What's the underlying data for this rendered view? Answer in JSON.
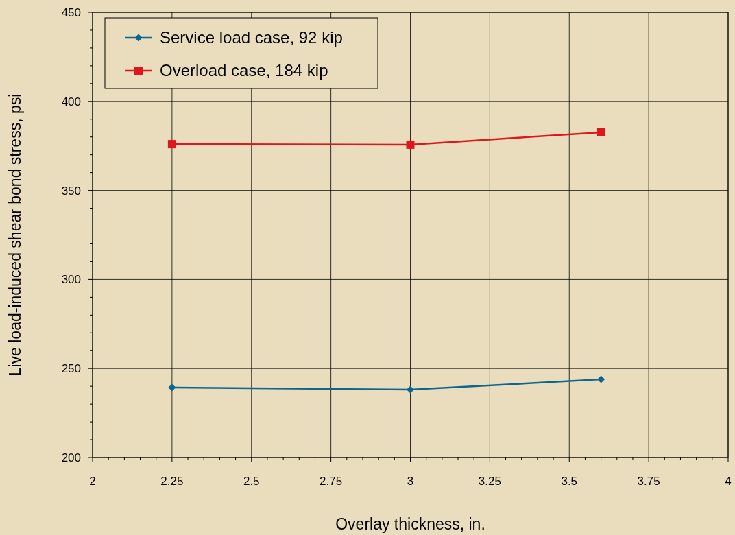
{
  "chart_data": {
    "type": "line",
    "xlabel": "Overlay thickness, in.",
    "ylabel": "Live load-induced shear bond stress, psi",
    "x": [
      2.25,
      3,
      3.6
    ],
    "series": [
      {
        "name": "Service load case, 92 kip",
        "color": "#0e6690",
        "marker": "diamond",
        "values": [
          239.3,
          238.1,
          243.9
        ]
      },
      {
        "name": "Overload case, 184 kip",
        "color": "#e0161e",
        "marker": "square",
        "values": [
          376,
          375.7,
          382.6
        ]
      }
    ],
    "xlim": [
      2,
      4
    ],
    "xticks": [
      2,
      {
        "value": 2.05,
        "label": null
      },
      {
        "value": 2.1,
        "label": null
      },
      {
        "value": 2.15,
        "label": null
      },
      {
        "value": 2.2,
        "label": null
      },
      2.25,
      {
        "value": 2.3,
        "label": null
      },
      {
        "value": 2.35,
        "label": null
      },
      {
        "value": 2.4,
        "label": null
      },
      {
        "value": 2.45,
        "label": null
      },
      2.5,
      {
        "value": 2.55,
        "label": null
      },
      {
        "value": 2.6,
        "label": null
      },
      {
        "value": 2.65,
        "label": null
      },
      {
        "value": 2.7,
        "label": null
      },
      2.75,
      {
        "value": 2.8,
        "label": null
      },
      {
        "value": 2.85,
        "label": null
      },
      {
        "value": 2.9,
        "label": null
      },
      {
        "value": 2.95,
        "label": null
      },
      3,
      {
        "value": 3.05,
        "label": null
      },
      {
        "value": 3.1,
        "label": null
      },
      {
        "value": 3.15,
        "label": null
      },
      {
        "value": 3.2,
        "label": null
      },
      3.25,
      {
        "value": 3.3,
        "label": null
      },
      {
        "value": 3.35,
        "label": null
      },
      {
        "value": 3.4,
        "label": null
      },
      {
        "value": 3.45,
        "label": null
      },
      3.5,
      {
        "value": 3.55,
        "label": null
      },
      {
        "value": 3.6,
        "label": null
      },
      {
        "value": 3.65,
        "label": null
      },
      {
        "value": 3.7,
        "label": null
      },
      3.75,
      {
        "value": 3.8,
        "label": null
      },
      {
        "value": 3.85,
        "label": null
      },
      {
        "value": 3.9,
        "label": null
      },
      {
        "value": 3.95,
        "label": null
      },
      4
    ],
    "ylim": [
      200,
      450
    ],
    "yticks": [
      200,
      {
        "value": 210,
        "label": null
      },
      {
        "value": 220,
        "label": null
      },
      {
        "value": 230,
        "label": null
      },
      {
        "value": 240,
        "label": null
      },
      250,
      {
        "value": 260,
        "label": null
      },
      {
        "value": 270,
        "label": null
      },
      {
        "value": 280,
        "label": null
      },
      {
        "value": 290,
        "label": null
      },
      300,
      {
        "value": 310,
        "label": null
      },
      {
        "value": 320,
        "label": null
      },
      {
        "value": 330,
        "label": null
      },
      {
        "value": 340,
        "label": null
      },
      350,
      {
        "value": 360,
        "label": null
      },
      {
        "value": 370,
        "label": null
      },
      {
        "value": 380,
        "label": null
      },
      {
        "value": 390,
        "label": null
      },
      400,
      {
        "value": 410,
        "label": null
      },
      {
        "value": 420,
        "label": null
      },
      {
        "value": 430,
        "label": null
      },
      {
        "value": 440,
        "label": null
      },
      450
    ],
    "grid": true,
    "legend": "top left",
    "line_style": "solid"
  }
}
